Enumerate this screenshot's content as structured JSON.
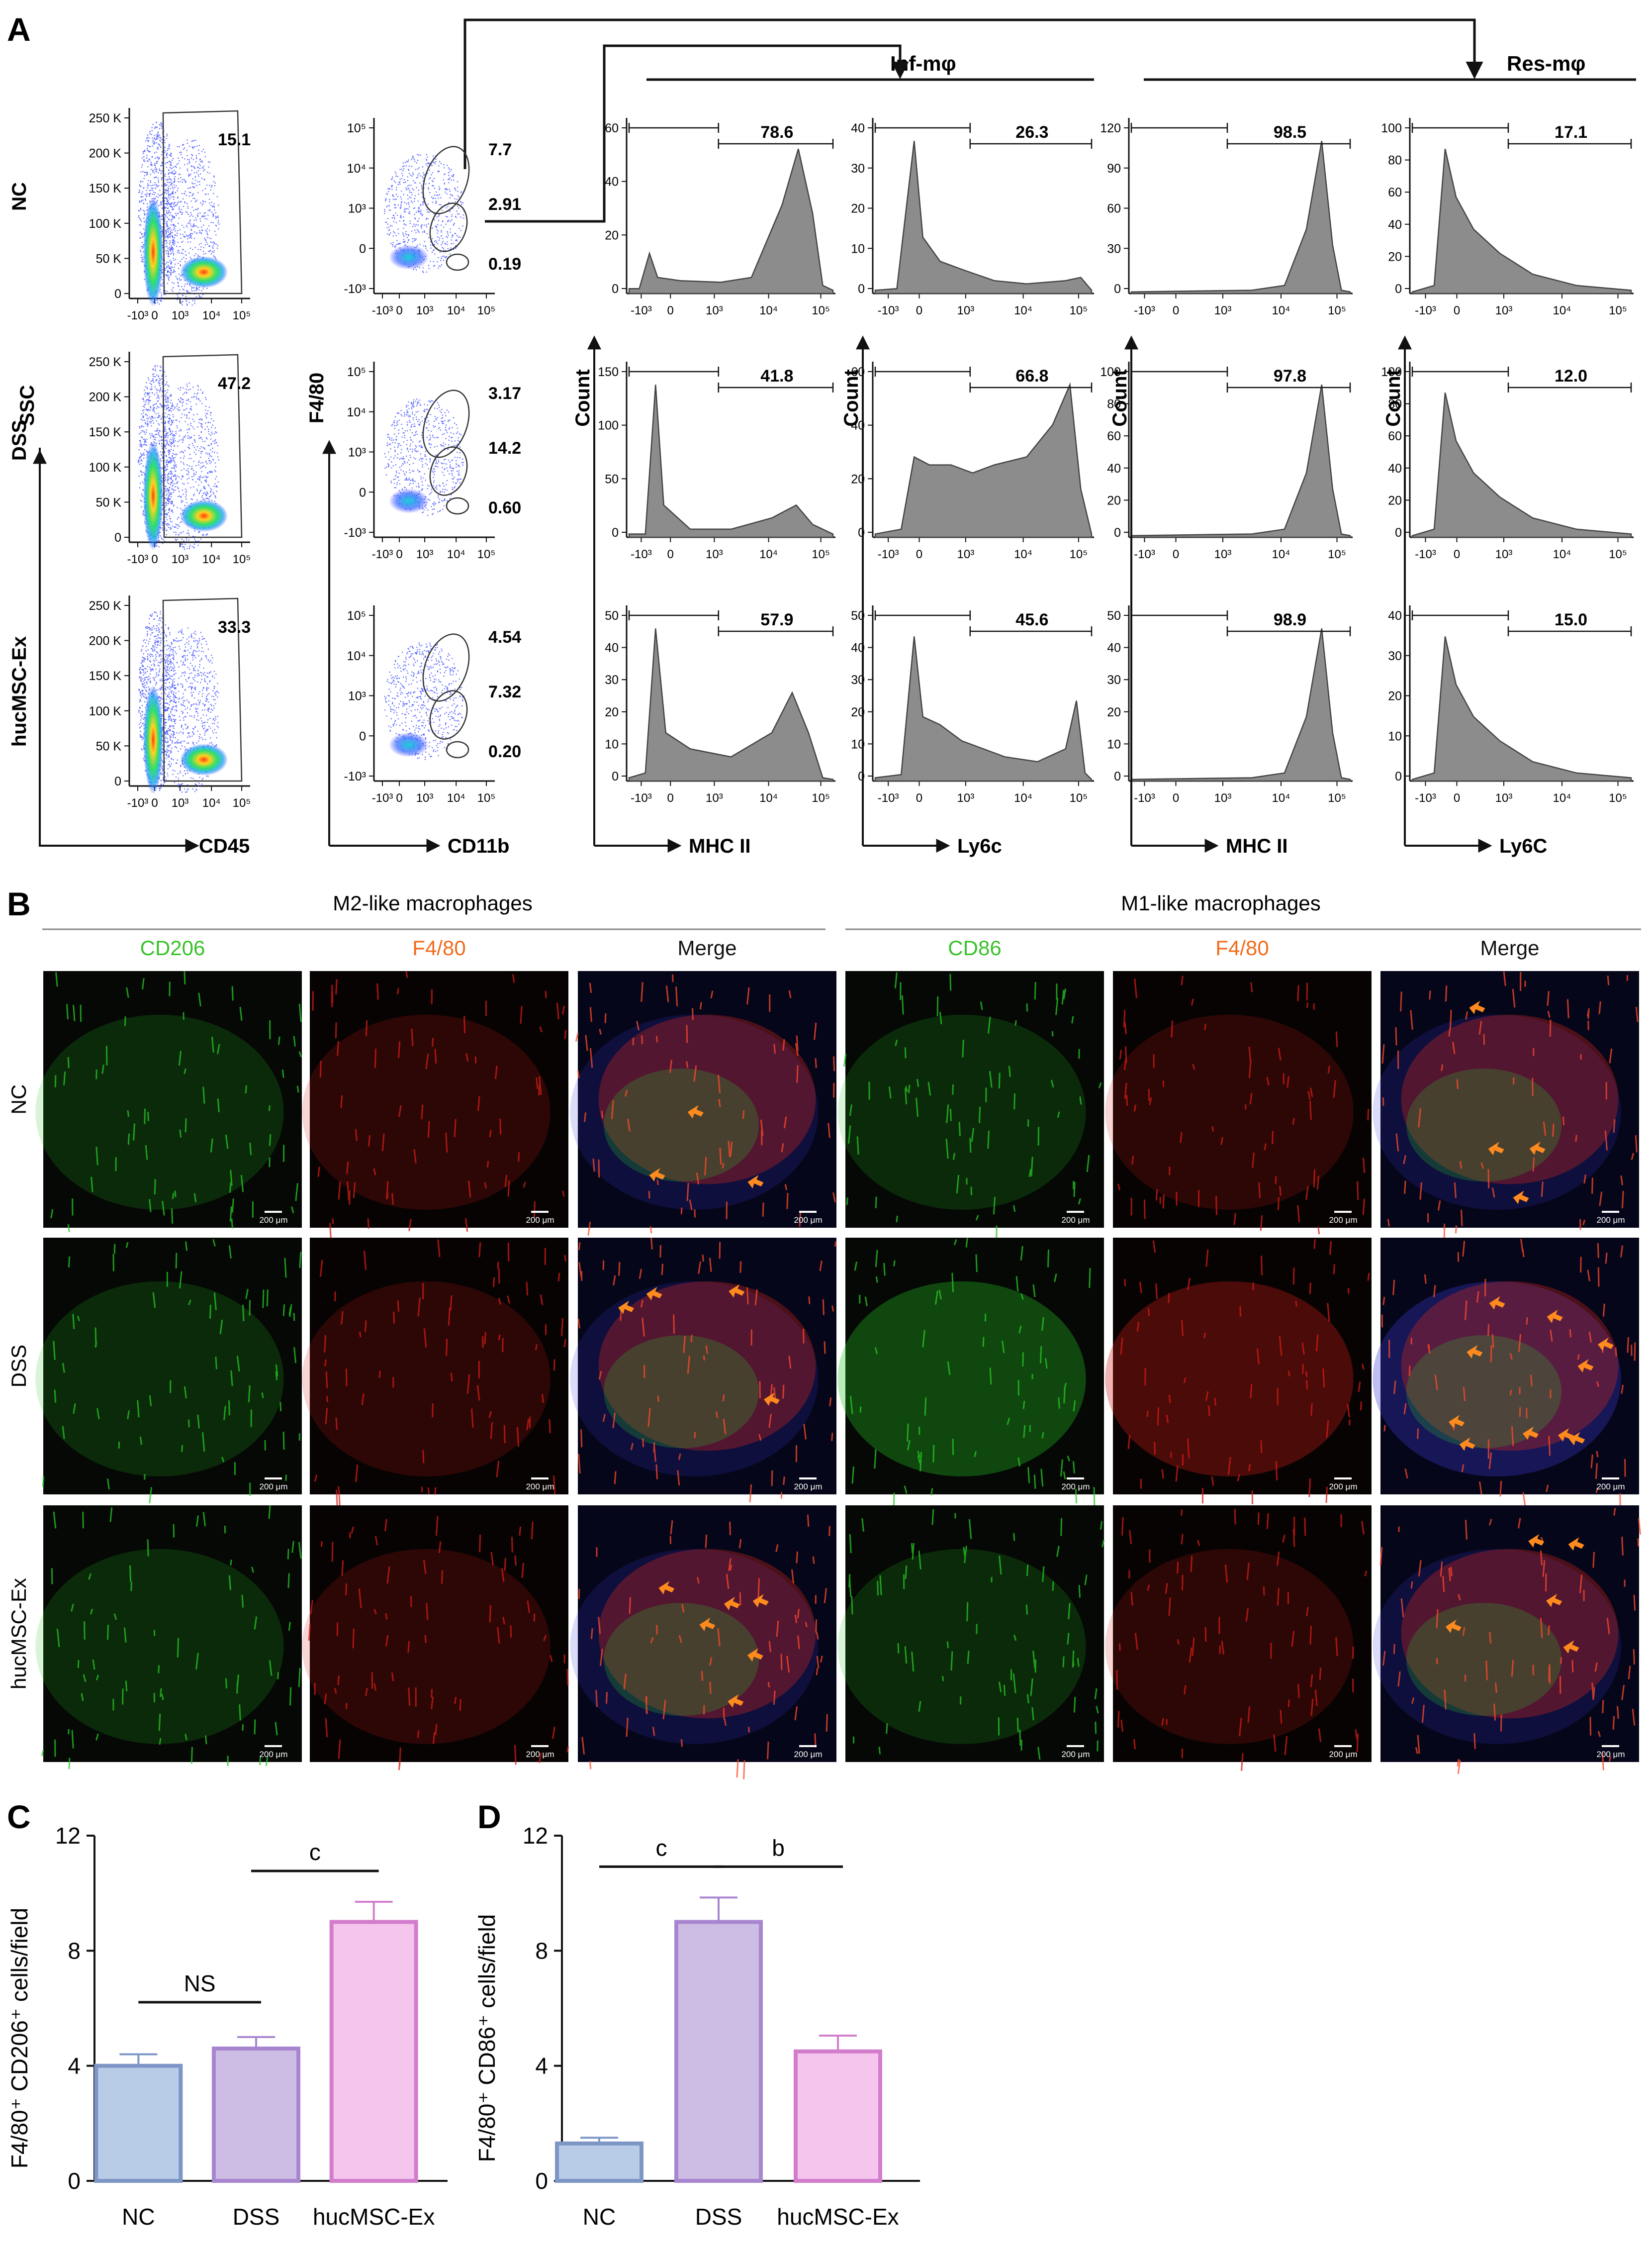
{
  "panels": {
    "a": "A",
    "b": "B",
    "c": "C",
    "d": "D"
  },
  "flow": {
    "rows": [
      "NC",
      "DSS",
      "hucMSC-Ex"
    ],
    "groups": {
      "inf": "Inf-mφ",
      "res": "Res-mφ"
    },
    "yaxes": {
      "ssc": "SSC",
      "f480": "F4/80",
      "count": "Count"
    },
    "xaxes": {
      "cd45": "CD45",
      "cd11b": "CD11b",
      "mhc1": "MHC II",
      "ly6c1": "Ly6c",
      "mhc2": "MHC II",
      "ly6c2": "Ly6C"
    },
    "ticks": {
      "log_x": [
        "-10³",
        "0",
        "10³",
        "10⁴",
        "10⁵"
      ],
      "log_y": [
        "10⁵",
        "10⁴",
        "10³",
        "0",
        "-10³"
      ],
      "ssc_y": [
        "250 K",
        "200 K",
        "150 K",
        "100 K",
        "50 K",
        "0"
      ]
    },
    "gate_cd45": [
      "15.1",
      "47.2",
      "33.3"
    ],
    "gate_f480": [
      [
        "7.7",
        "2.91",
        "0.19"
      ],
      [
        "3.17",
        "14.2",
        "0.60"
      ],
      [
        "4.54",
        "7.32",
        "0.20"
      ]
    ],
    "hist_mhc_inf": {
      "pct": [
        "78.6",
        "41.8",
        "57.9"
      ],
      "yticks": [
        [
          "60",
          "40",
          "20",
          "0"
        ],
        [
          "150",
          "100",
          "50",
          "0"
        ],
        [
          "50",
          "40",
          "30",
          "20",
          "10",
          "0"
        ]
      ]
    },
    "hist_ly6c_inf": {
      "pct": [
        "26.3",
        "66.8",
        "45.6"
      ],
      "yticks": [
        [
          "40",
          "30",
          "20",
          "10",
          "0"
        ],
        [
          "60",
          "40",
          "20",
          "0"
        ],
        [
          "50",
          "40",
          "30",
          "20",
          "10",
          "0"
        ]
      ]
    },
    "hist_mhc_res": {
      "pct": [
        "98.5",
        "97.8",
        "98.9"
      ],
      "yticks": [
        [
          "120",
          "90",
          "60",
          "30",
          "0"
        ],
        [
          "100",
          "80",
          "60",
          "40",
          "20",
          "0"
        ],
        [
          "50",
          "40",
          "30",
          "20",
          "10",
          "0"
        ]
      ]
    },
    "hist_ly6c_res": {
      "pct": [
        "17.1",
        "12.0",
        "15.0"
      ],
      "yticks": [
        [
          "100",
          "80",
          "60",
          "40",
          "20",
          "0"
        ],
        [
          "100",
          "80",
          "60",
          "40",
          "20",
          "0"
        ],
        [
          "40",
          "30",
          "20",
          "10",
          "0"
        ]
      ]
    }
  },
  "micro": {
    "groups": {
      "m2": "M2-like macrophages",
      "m1": "M1-like macrophages"
    },
    "columns": [
      "CD206",
      "F4/80",
      "Merge",
      "CD86",
      "F4/80",
      "Merge"
    ],
    "column_colors": [
      "#39c12a",
      "#f26a1b",
      "#111111",
      "#39c12a",
      "#f26a1b",
      "#111111"
    ],
    "rows": [
      "NC",
      "DSS",
      "hucMSC-Ex"
    ],
    "scale_bar": "200 μm"
  },
  "chart_data": [
    {
      "type": "bar",
      "categories": [
        "NC",
        "DSS",
        "hucMSC-Ex"
      ],
      "values": [
        4.0,
        4.6,
        9.0
      ],
      "errors": [
        0.4,
        0.4,
        0.7
      ],
      "ylabel": "F4/80⁺ CD206⁺ cells/field",
      "ylim": [
        0,
        12
      ],
      "yticks": [
        0,
        4,
        8,
        12
      ],
      "colors": {
        "fill": [
          "#b8cce8",
          "#cdbde5",
          "#f5c5ee"
        ],
        "edge": [
          "#7d96c6",
          "#a886cf",
          "#d27dcc"
        ]
      },
      "significance": [
        {
          "from": 0,
          "to": 1,
          "label": "NS"
        },
        {
          "from": 1,
          "to": 2,
          "label": "c"
        }
      ]
    },
    {
      "type": "bar",
      "categories": [
        "NC",
        "DSS",
        "hucMSC-Ex"
      ],
      "values": [
        1.3,
        9.0,
        4.5
      ],
      "errors": [
        0.2,
        0.85,
        0.55
      ],
      "ylabel": "F4/80⁺ CD86⁺ cells/field",
      "ylim": [
        0,
        12
      ],
      "yticks": [
        0,
        4,
        8,
        12
      ],
      "colors": {
        "fill": [
          "#b8cce8",
          "#cdbde5",
          "#f5c5ee"
        ],
        "edge": [
          "#7d96c6",
          "#a886cf",
          "#d27dcc"
        ]
      },
      "significance": [
        {
          "from": 0,
          "to": 1,
          "label": "c"
        },
        {
          "from": 1,
          "to": 2,
          "label": "b"
        }
      ]
    }
  ]
}
